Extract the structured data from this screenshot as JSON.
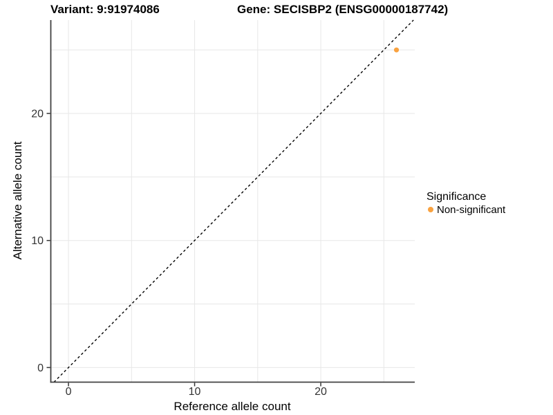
{
  "chart_data": {
    "type": "scatter",
    "titles": {
      "variant": "Variant: 9:91974086",
      "gene": "Gene: SECISBP2 (ENSG00000187742)"
    },
    "xlabel": "Reference allele count",
    "ylabel": "Alternative allele count",
    "xlim": [
      -1.4,
      27.45
    ],
    "ylim": [
      -1.15,
      27.35
    ],
    "x_ticks": [
      0,
      10,
      20
    ],
    "y_ticks": [
      0,
      10,
      20
    ],
    "x_minor_gridlines": [
      5,
      15,
      25
    ],
    "y_minor_gridlines": [
      5,
      15,
      25
    ],
    "grid": true,
    "identity_line": {
      "style": "dashed",
      "color": "#000000",
      "equation": "y = x"
    },
    "series": [
      {
        "name": "Non-significant",
        "color": "#F9A240",
        "points": [
          {
            "x": 26,
            "y": 25
          }
        ]
      }
    ],
    "legend": {
      "title": "Significance",
      "position": "right",
      "items": [
        {
          "label": "Non-significant",
          "color": "#F9A240"
        }
      ]
    },
    "colors": {
      "axis_line": "#404040",
      "tick_mark": "#333333",
      "tick_label": "#333333",
      "gridline": "#E7E7E7",
      "background": "#FFFFFF"
    }
  }
}
